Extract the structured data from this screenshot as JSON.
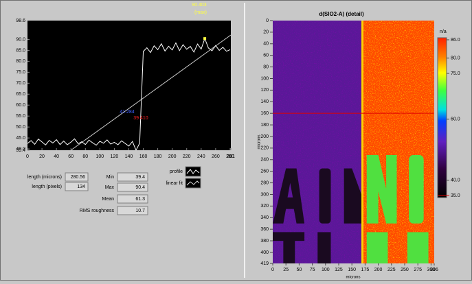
{
  "profile_plot": {
    "ylim": [
      39.4,
      98.6
    ],
    "yticks": [
      98.6,
      {
        "value": 90,
        "label": "90.0"
      },
      {
        "value": 85,
        "label": "85.0"
      },
      {
        "value": 80,
        "label": "80.0"
      },
      {
        "value": 75,
        "label": "75.0"
      },
      {
        "value": 70,
        "label": "70.0"
      },
      {
        "value": 65,
        "label": "65.0"
      },
      {
        "value": 60,
        "label": "60.0"
      },
      {
        "value": 55,
        "label": "55.0"
      },
      {
        "value": 50,
        "label": "50.0"
      },
      {
        "value": 45,
        "label": "45.0"
      },
      {
        "value": 40,
        "label": "40.0"
      },
      39.4
    ],
    "xlim": [
      0,
      281
    ],
    "xticks": [
      0,
      20,
      40,
      60,
      80,
      100,
      120,
      140,
      160,
      180,
      200,
      220,
      240,
      260,
      280,
      281
    ],
    "x": [
      0,
      5,
      10,
      15,
      20,
      25,
      30,
      35,
      40,
      45,
      50,
      55,
      60,
      65,
      70,
      75,
      80,
      85,
      90,
      95,
      100,
      105,
      110,
      115,
      120,
      125,
      130,
      135,
      140,
      145,
      150,
      155,
      160,
      165,
      170,
      175,
      180,
      185,
      190,
      195,
      200,
      205,
      210,
      215,
      220,
      225,
      230,
      235,
      240,
      245,
      250,
      255,
      260,
      265,
      270,
      275,
      280
    ],
    "profile": [
      42.5,
      43.8,
      42.1,
      44.5,
      43.2,
      41.8,
      43.9,
      42.7,
      44.2,
      42.0,
      43.6,
      41.9,
      43.1,
      44.6,
      42.4,
      43.3,
      42.0,
      44.0,
      42.8,
      41.7,
      43.5,
      42.6,
      44.1,
      42.2,
      43.0,
      41.9,
      43.7,
      42.5,
      41.3,
      43.4,
      39.4,
      42.6,
      84.5,
      86.2,
      84.0,
      87.1,
      85.3,
      88.0,
      84.7,
      86.9,
      85.2,
      88.4,
      84.9,
      87.6,
      85.5,
      86.8,
      84.2,
      87.9,
      85.6,
      90.4,
      86.1,
      84.8,
      87.2,
      85.0,
      86.4,
      84.6,
      85.3
    ],
    "fit_x": [
      60,
      281
    ],
    "fit": [
      39.4,
      92
    ],
    "max_text": "90.403",
    "max_label": "(max)",
    "cursor_a": "41.284",
    "cursor_b": "39.410"
  },
  "stats": {
    "length_microns": {
      "label": "length (microns)",
      "value": "280.56"
    },
    "length_pixels": {
      "label": "length (pixels)",
      "value": "134"
    },
    "min": {
      "label": "Min",
      "value": "39.4"
    },
    "max": {
      "label": "Max",
      "value": "90.4"
    },
    "mean": {
      "label": "Mean",
      "value": "61.3"
    },
    "rms": {
      "label": "RMS roughness",
      "value": "10.7"
    }
  },
  "legend": [
    "profile",
    "linear fit"
  ],
  "image": {
    "title": "d(SIO2-A) (detail)",
    "x_label": "microns",
    "y_label": "microns",
    "xlim": [
      0,
      306
    ],
    "xticks": [
      0,
      25,
      50,
      75,
      100,
      125,
      150,
      175,
      200,
      225,
      250,
      275,
      300,
      306
    ],
    "ylim": [
      0,
      419
    ],
    "yticks": [
      0,
      20,
      40,
      60,
      80,
      100,
      120,
      140,
      160,
      180,
      200,
      220,
      240,
      260,
      280,
      300,
      320,
      340,
      360,
      380,
      400,
      419
    ],
    "cursor_y": 160
  },
  "colorbar": {
    "unit": "n/a",
    "lim": [
      35,
      86
    ],
    "ticks": [
      {
        "value": 86,
        "label": "86.0"
      },
      {
        "value": 80,
        "label": "80.0"
      },
      {
        "value": 75,
        "label": "75.0"
      },
      {
        "value": 60,
        "label": "60.0"
      },
      {
        "value": 40,
        "label": "40.0"
      },
      {
        "value": 35,
        "label": "35.0"
      }
    ]
  }
}
